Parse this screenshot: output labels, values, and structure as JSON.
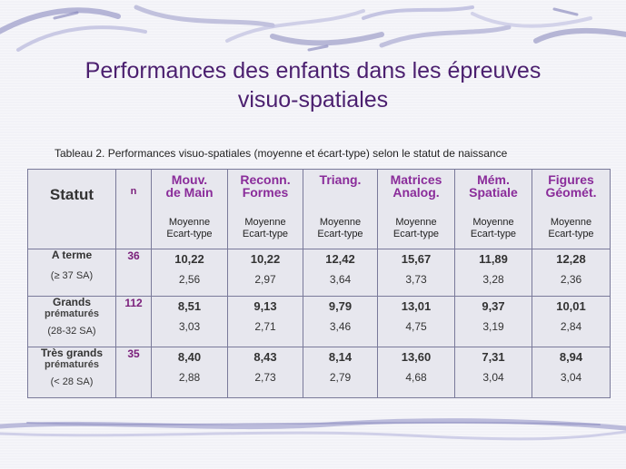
{
  "slide": {
    "title_line1": "Performances des enfants dans les épreuves",
    "title_line2": "visuo-spatiales"
  },
  "table": {
    "caption": "Tableau 2. Performances visuo-spatiales (moyenne et écart-type) selon le statut de naissance",
    "header_statut": "Statut",
    "header_n": "n",
    "tests": [
      {
        "line1": "Mouv.",
        "line2": "de Main",
        "sub1": "Moyenne",
        "sub2": "Ecart-type"
      },
      {
        "line1": "Reconn.",
        "line2": "Formes",
        "sub1": "Moyenne",
        "sub2": "Ecart-type"
      },
      {
        "line1": "Triang.",
        "line2": "",
        "sub1": "Moyenne",
        "sub2": "Ecart-type"
      },
      {
        "line1": "Matrices",
        "line2": "Analog.",
        "sub1": "Moyenne",
        "sub2": "Ecart-type"
      },
      {
        "line1": "Mém.",
        "line2": "Spatiale",
        "sub1": "Moyenne",
        "sub2": "Ecart-type"
      },
      {
        "line1": "Figures",
        "line2": "Géomét.",
        "sub1": "Moyenne",
        "sub2": "Ecart-type"
      }
    ],
    "rows": [
      {
        "label1": "A terme",
        "label2": "",
        "range": "(≥ 37 SA)",
        "n": "36",
        "means": [
          "10,22",
          "10,22",
          "12,42",
          "15,67",
          "11,89",
          "12,28"
        ],
        "sds": [
          "2,56",
          "2,97",
          "3,64",
          "3,73",
          "3,28",
          "2,36"
        ]
      },
      {
        "label1": "Grands",
        "label2": "prématurés",
        "range": "(28-32 SA)",
        "n": "112",
        "means": [
          "8,51",
          "9,13",
          "9,79",
          "13,01",
          "9,37",
          "10,01"
        ],
        "sds": [
          "3,03",
          "2,71",
          "3,46",
          "4,75",
          "3,19",
          "2,84"
        ]
      },
      {
        "label1": "Très grands",
        "label2": "prématurés",
        "range": "(< 28 SA)",
        "n": "35",
        "means": [
          "8,40",
          "8,43",
          "8,14",
          "13,60",
          "7,31",
          "8,94"
        ],
        "sds": [
          "2,88",
          "2,73",
          "2,79",
          "4,68",
          "3,04",
          "3,04"
        ]
      }
    ]
  }
}
